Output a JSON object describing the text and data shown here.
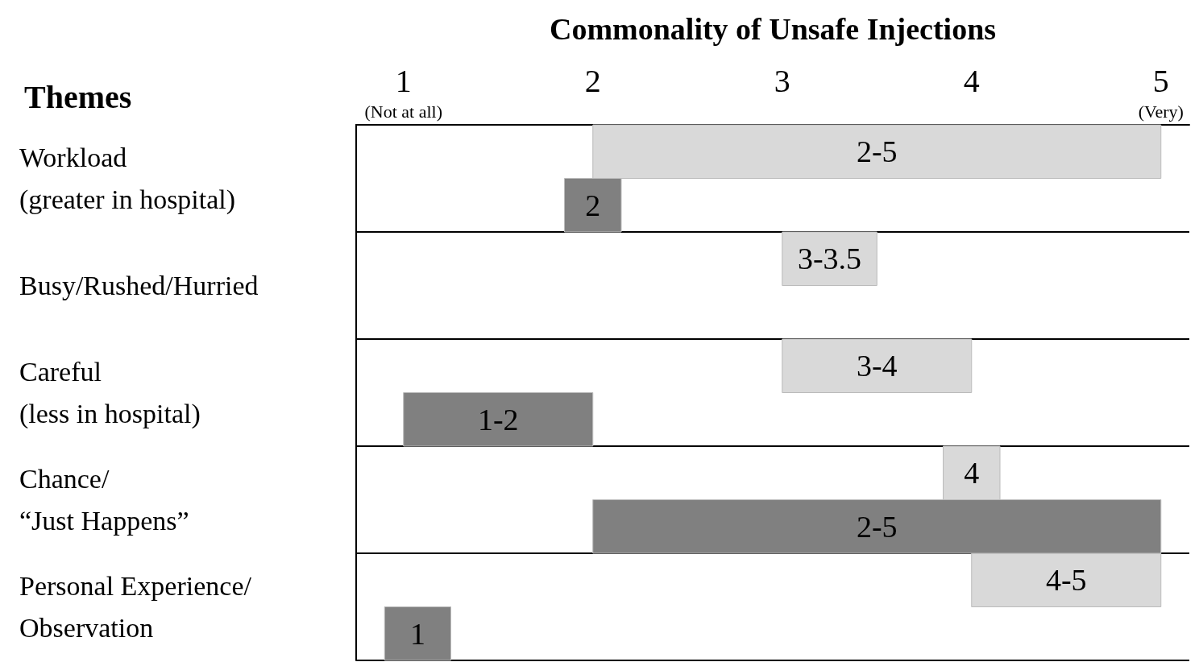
{
  "chart_data": {
    "type": "bar",
    "orientation": "horizontal",
    "xlabel": "Commonality of Unsafe Injections",
    "ylabel": "Themes",
    "categories": [
      "Workload\n(greater in hospital)",
      "Busy/Rushed/Hurried",
      "Careful\n(less in hospital)",
      "Chance/\n“Just Happens”",
      "Personal Experience/\nObservation"
    ],
    "series": [
      {
        "color": "#d9d9d9",
        "base": [
          2,
          3,
          3,
          3.85,
          4
        ],
        "values": [
          3,
          0.5,
          1,
          0.3,
          1
        ],
        "value_labels": [
          "2-5",
          "3-3.5",
          "3-4",
          "4",
          "4-5"
        ]
      },
      {
        "color": "#808080",
        "base": [
          1.85,
          null,
          1,
          2,
          0.9
        ],
        "values": [
          0.3,
          null,
          1,
          3,
          0.35
        ],
        "value_labels": [
          "2",
          null,
          "1-2",
          "2-5",
          "1"
        ]
      }
    ],
    "xlim": [
      0.75,
      5.15
    ],
    "xticks": [
      {
        "value": 1,
        "label": "1\n(Not at all)"
      },
      2,
      3,
      4,
      {
        "value": 5,
        "label": "5\n(Very)"
      }
    ],
    "grid": "y"
  }
}
